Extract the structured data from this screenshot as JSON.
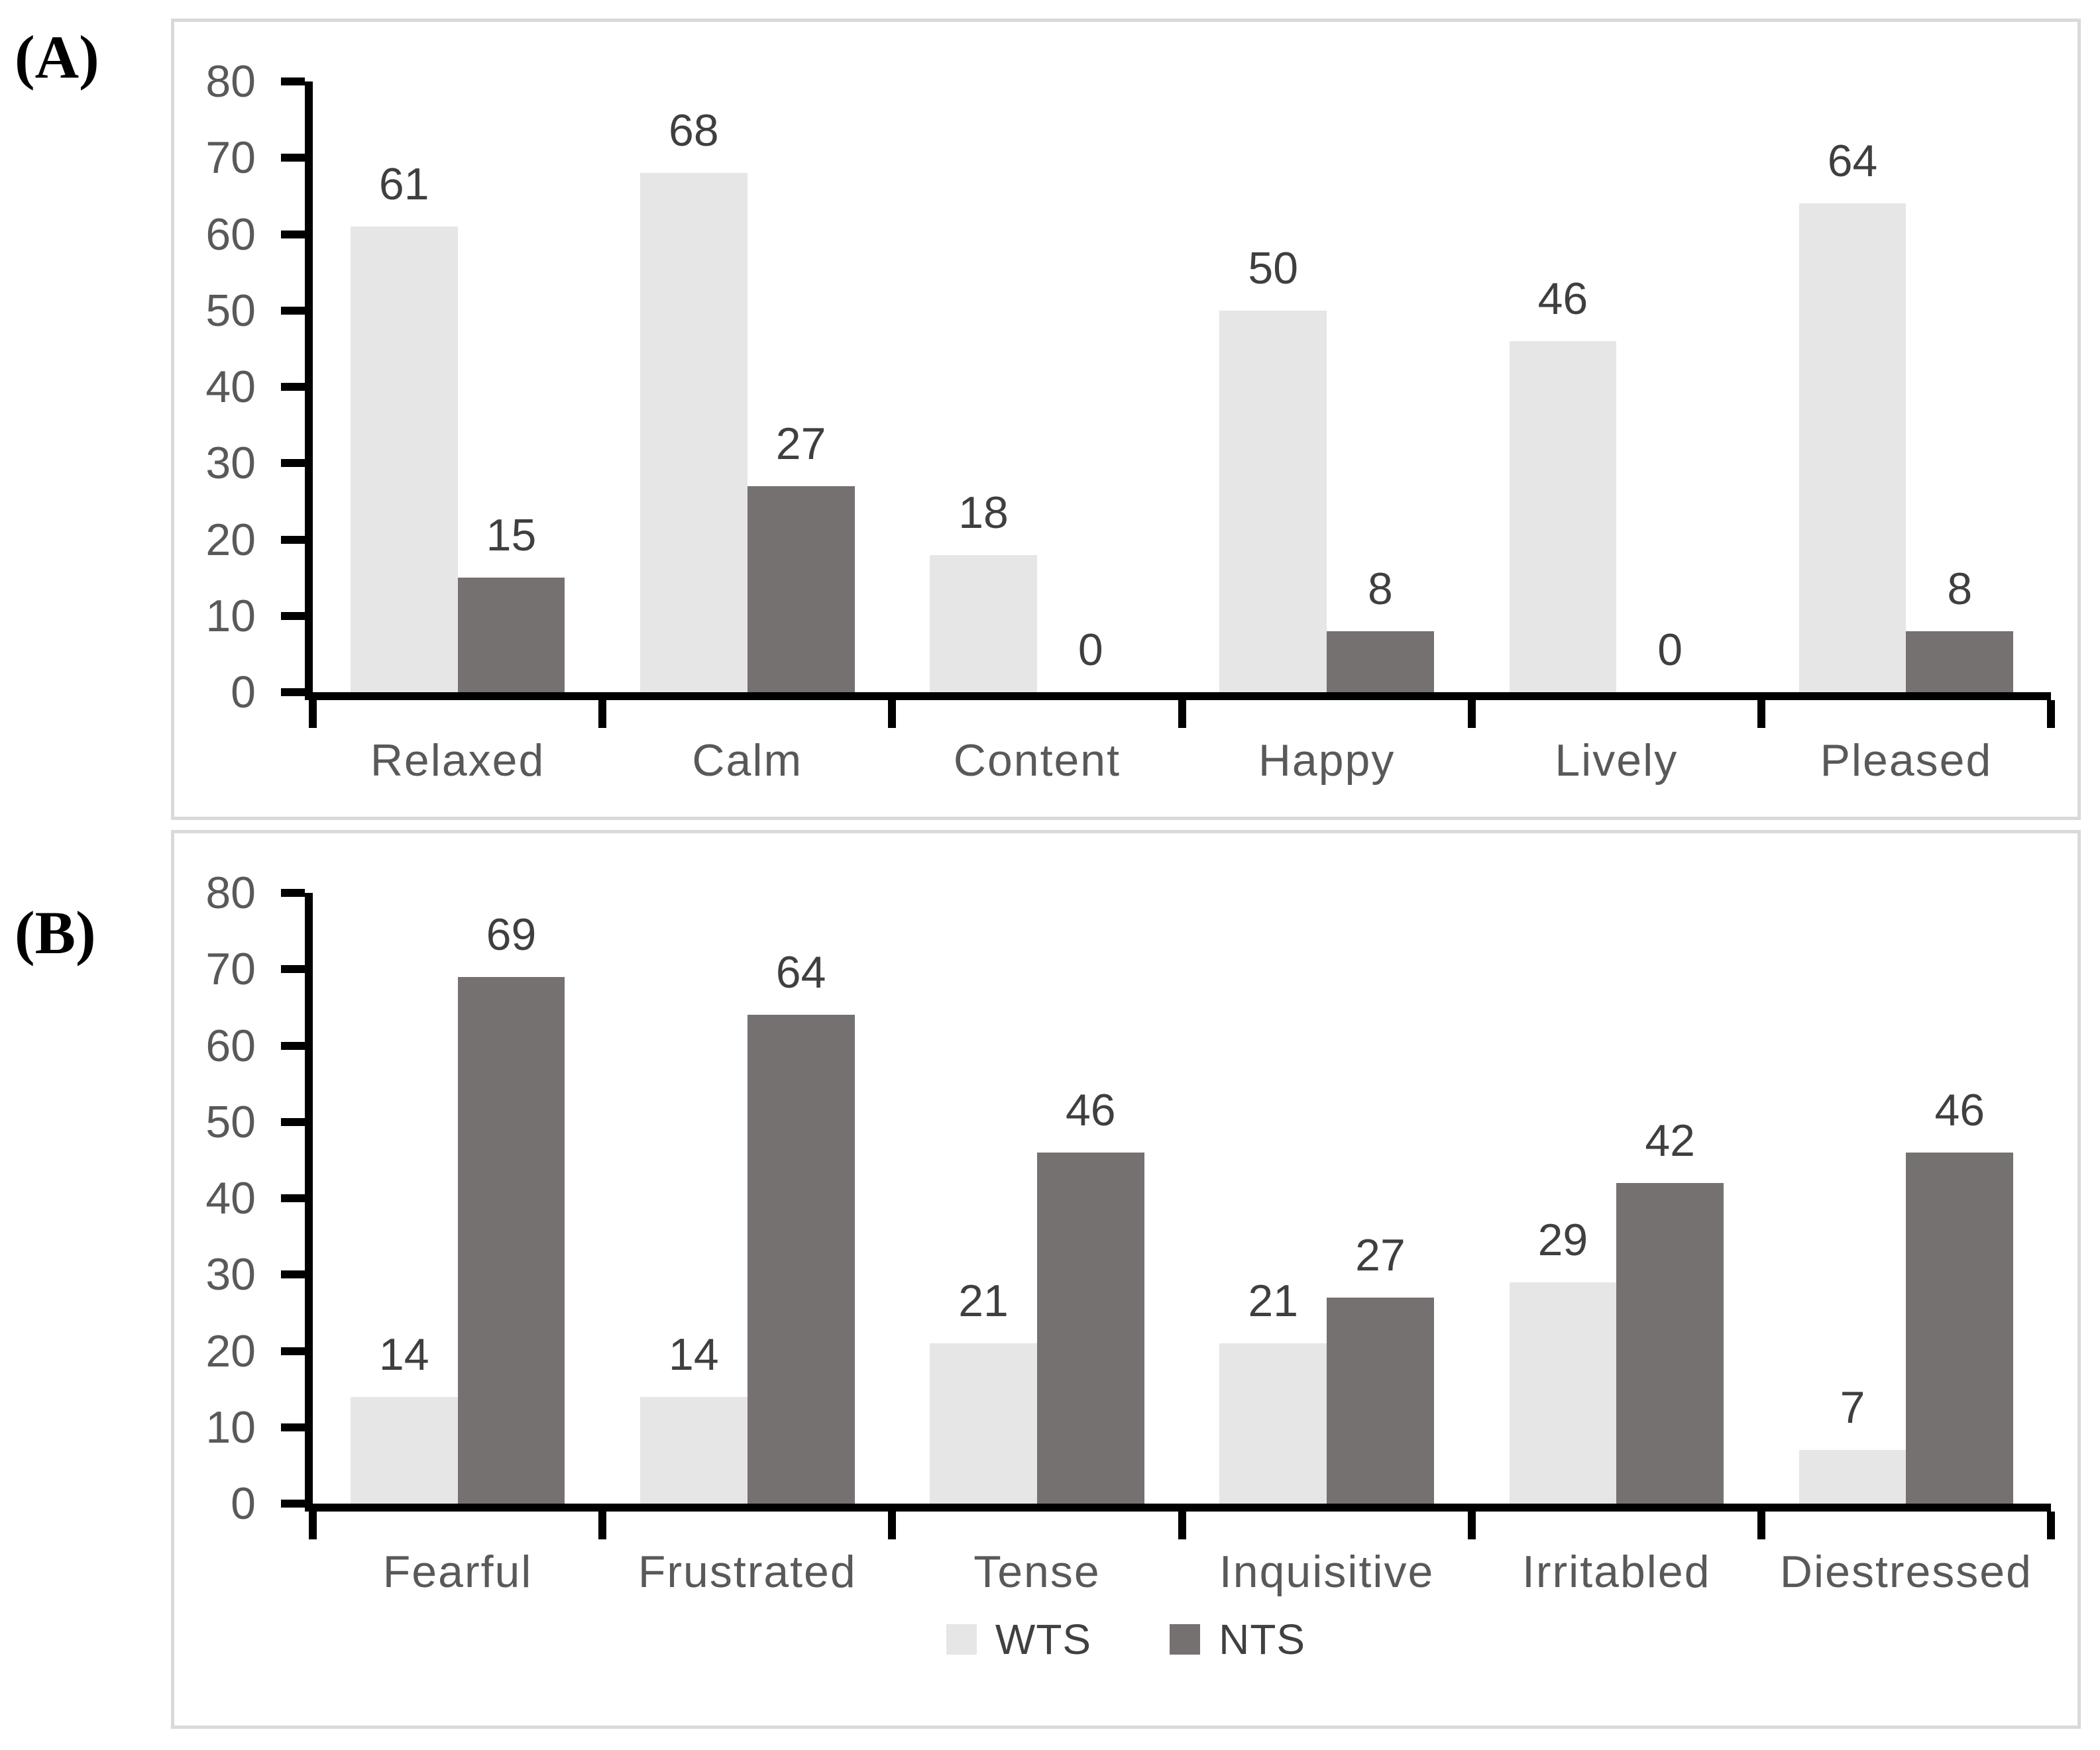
{
  "figure": {
    "panel_a_label": "(A)",
    "panel_b_label": "(B)"
  },
  "colors": {
    "wts": "#e7e6e6",
    "nts": "#767171",
    "axis": "#000000",
    "tick_label": "#595959",
    "value_label": "#3f3f3f",
    "category_label": "#595959",
    "legend_label": "#404040",
    "panel_border": "#d9d9d9",
    "background": "#ffffff"
  },
  "legend": {
    "items": [
      {
        "label": "WTS",
        "series": "wts"
      },
      {
        "label": "NTS",
        "series": "nts"
      }
    ]
  },
  "chart_data": [
    {
      "type": "bar",
      "panel": "A",
      "title": "",
      "xlabel": "",
      "ylabel": "",
      "categories": [
        "Relaxed",
        "Calm",
        "Content",
        "Happy",
        "Lively",
        "Pleased"
      ],
      "series": [
        {
          "name": "WTS",
          "color_key": "wts",
          "values": [
            61,
            68,
            18,
            50,
            46,
            64
          ]
        },
        {
          "name": "NTS",
          "color_key": "nts",
          "values": [
            15,
            27,
            0,
            8,
            0,
            8
          ]
        }
      ],
      "ylim": [
        0,
        80
      ],
      "yticks": [
        0,
        10,
        20,
        30,
        40,
        50,
        60,
        70,
        80
      ],
      "grid": false,
      "data_labels": true,
      "legend_position": "none"
    },
    {
      "type": "bar",
      "panel": "B",
      "title": "",
      "xlabel": "",
      "ylabel": "",
      "categories": [
        "Fearful",
        "Frustrated",
        "Tense",
        "Inquisitive",
        "Irritabled",
        "Diestressed"
      ],
      "series": [
        {
          "name": "WTS",
          "color_key": "wts",
          "values": [
            14,
            14,
            21,
            21,
            29,
            7
          ]
        },
        {
          "name": "NTS",
          "color_key": "nts",
          "values": [
            69,
            64,
            46,
            27,
            42,
            46
          ]
        }
      ],
      "ylim": [
        0,
        80
      ],
      "yticks": [
        0,
        10,
        20,
        30,
        40,
        50,
        60,
        70,
        80
      ],
      "grid": false,
      "data_labels": true,
      "legend_position": "bottom"
    }
  ]
}
